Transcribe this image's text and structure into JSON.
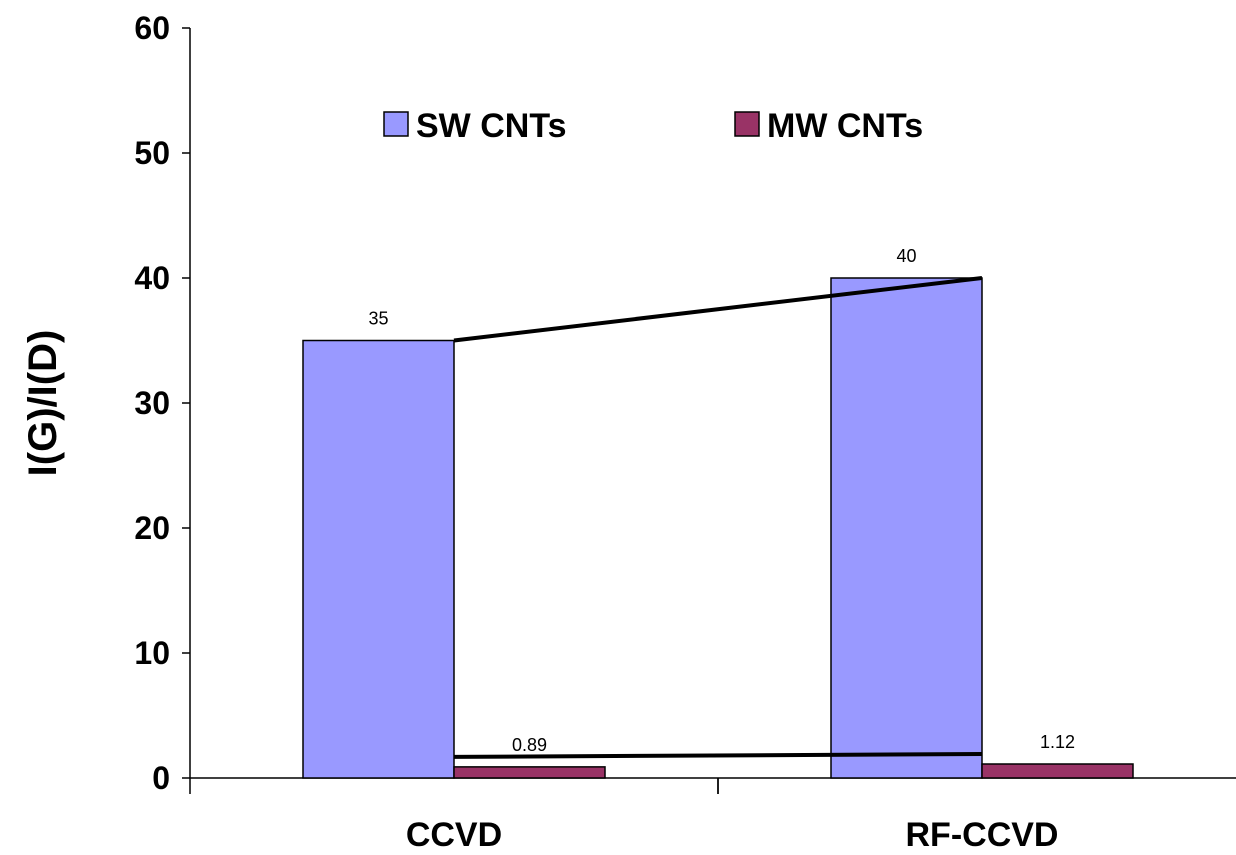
{
  "chart_data": {
    "type": "bar",
    "categories": [
      "CCVD",
      "RF-CCVD"
    ],
    "series": [
      {
        "name": "SW CNTs",
        "values": [
          35,
          40
        ],
        "labels": [
          "35",
          "40"
        ],
        "color": "#9999ff"
      },
      {
        "name": "MW CNTs",
        "values": [
          0.89,
          1.12
        ],
        "labels": [
          "0.89",
          "1.12"
        ],
        "color": "#993366"
      }
    ],
    "trend_lines": true,
    "title": "",
    "xlabel": "",
    "ylabel": "I(G)/I(D)",
    "ylim": [
      0,
      60
    ],
    "yticks": [
      "0",
      "10",
      "20",
      "30",
      "40",
      "50",
      "60"
    ],
    "grid": false,
    "legend_position": "top"
  }
}
